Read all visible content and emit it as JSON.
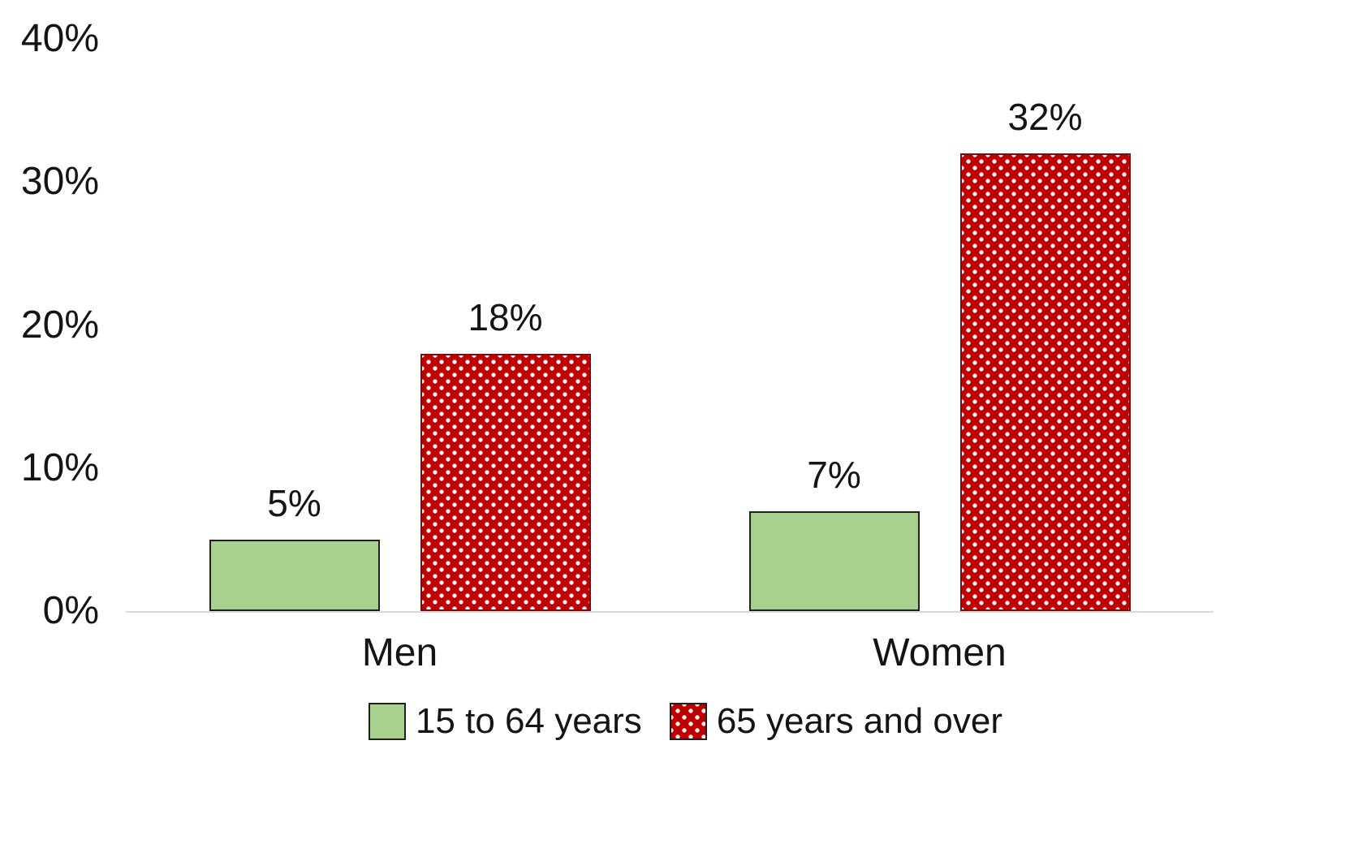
{
  "chart_data": {
    "type": "bar",
    "title": "",
    "xlabel": "",
    "ylabel": "",
    "categories": [
      "Men",
      "Women"
    ],
    "series": [
      {
        "name": "15 to 64 years",
        "values": [
          5,
          7
        ],
        "labels": [
          "5%",
          "7%"
        ],
        "color": "#A9D18E",
        "border": "#1f1f1f",
        "pattern": "solid"
      },
      {
        "name": "65 years and over",
        "values": [
          18,
          32
        ],
        "labels": [
          "18%",
          "32%"
        ],
        "color": "#C00000",
        "border": "#7e0b0b",
        "pattern": "dots"
      }
    ],
    "y_axis": {
      "min": 0,
      "max": 40,
      "ticks": [
        {
          "value": 40,
          "label": "40%"
        },
        {
          "value": 30,
          "label": "30%"
        },
        {
          "value": 20,
          "label": "20%"
        },
        {
          "value": 10,
          "label": "10%"
        },
        {
          "value": 0,
          "label": "0%"
        }
      ]
    },
    "ylim": [
      0,
      40
    ],
    "grid": false,
    "legend_position": "bottom",
    "axis_line_color": "#d9d9d9"
  }
}
